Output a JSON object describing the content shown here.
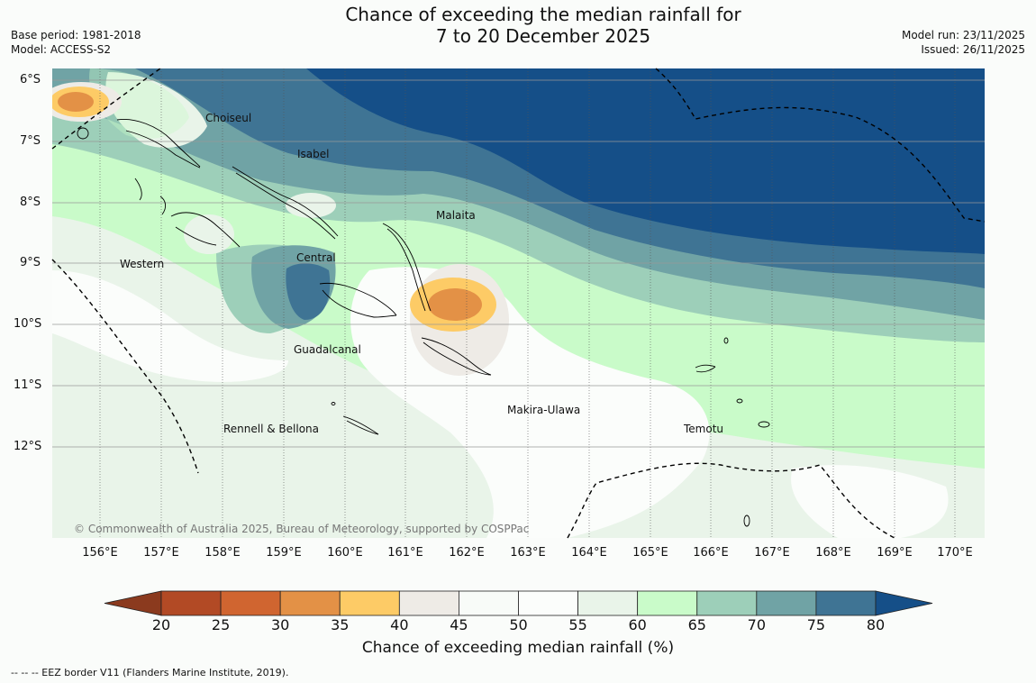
{
  "header": {
    "title_line1": "Chance of exceeding the median rainfall for",
    "title_line2": "7 to 20 December 2025",
    "base_period": "Base period: 1981-2018",
    "model": "Model: ACCESS-S2",
    "model_run": "Model run: 23/11/2025",
    "issued": "Issued: 26/11/2025"
  },
  "map": {
    "lat_labels": [
      "6°S",
      "7°S",
      "8°S",
      "9°S",
      "10°S",
      "11°S",
      "12°S"
    ],
    "lon_labels": [
      "156°E",
      "157°E",
      "158°E",
      "159°E",
      "160°E",
      "161°E",
      "162°E",
      "163°E",
      "164°E",
      "165°E",
      "166°E",
      "167°E",
      "168°E",
      "169°E",
      "170°E"
    ],
    "places": {
      "choiseul": "Choiseul",
      "isabel": "Isabel",
      "malaita": "Malaita",
      "western": "Western",
      "central": "Central",
      "guadalcanal": "Guadalcanal",
      "makira": "Makira-Ulawa",
      "rennell": "Rennell & Bellona",
      "temotu": "Temotu"
    },
    "copyright": "© Commonwealth of Australia 2025, Bureau of Meteorology, supported by COSPPac"
  },
  "colorbar": {
    "ticks": [
      "20",
      "25",
      "30",
      "35",
      "40",
      "45",
      "50",
      "55",
      "60",
      "65",
      "70",
      "75",
      "80"
    ],
    "label": "Chance of exceeding median rainfall (%)",
    "colors": [
      "#8b3a1e",
      "#b24a25",
      "#d06530",
      "#e39146",
      "#fdcb66",
      "#eeebe6",
      "#f8fbf8",
      "#fbfdfb",
      "#e9f4e9",
      "#c9fbc9",
      "#9dcfb9",
      "#70a3a5",
      "#3f7494",
      "#154f88"
    ]
  },
  "footer": {
    "eez_note": "-- -- -- EEZ border V11 (Flanders Marine Institute, 2019)."
  }
}
